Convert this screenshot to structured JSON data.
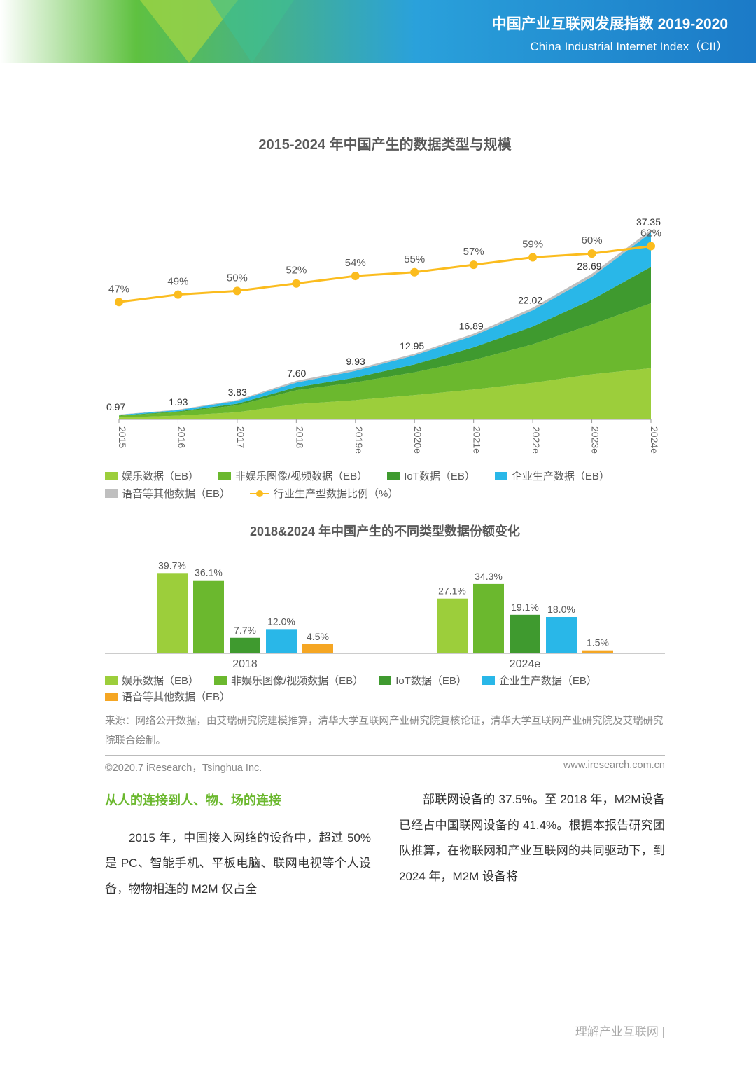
{
  "header": {
    "title_cn": "中国产业互联网发展指数 2019-2020",
    "title_en": "China Industrial Internet Index（CII）",
    "bg_gradient": [
      "#ffffff",
      "#5fc140",
      "#2aa1db",
      "#1b7ac7"
    ]
  },
  "chart1": {
    "title": "2015-2024 年中国产生的数据类型与规模",
    "type": "stacked-area-with-line",
    "categories": [
      "2015",
      "2016",
      "2017",
      "2018",
      "2019e",
      "2020e",
      "2021e",
      "2022e",
      "2023e",
      "2024e"
    ],
    "totals": [
      0.97,
      1.93,
      3.83,
      7.6,
      9.93,
      12.95,
      16.89,
      22.02,
      28.69,
      37.35
    ],
    "series": [
      {
        "name": "娱乐数据（EB）",
        "key": "entertainment",
        "color": "#9cce3b",
        "values": [
          0.38,
          0.74,
          1.42,
          3.02,
          3.8,
          4.8,
          5.9,
          7.2,
          8.9,
          10.1
        ]
      },
      {
        "name": "非娱乐图像/视频数据（EB）",
        "key": "non_ent_imgvid",
        "color": "#6bb82e",
        "values": [
          0.35,
          0.7,
          1.38,
          2.74,
          3.5,
          4.5,
          5.8,
          7.6,
          9.8,
          12.8
        ]
      },
      {
        "name": "IoT数据（EB）",
        "key": "iot",
        "color": "#3f9a2f",
        "values": [
          0.07,
          0.15,
          0.3,
          0.59,
          0.95,
          1.55,
          2.5,
          3.5,
          4.9,
          7.15
        ]
      },
      {
        "name": "企业生产数据（EB）",
        "key": "enterprise",
        "color": "#29b7e8",
        "values": [
          0.12,
          0.24,
          0.55,
          0.91,
          1.32,
          1.78,
          2.3,
          3.22,
          4.49,
          6.72
        ]
      },
      {
        "name": "语音等其他数据（EB）",
        "key": "voice_other",
        "color": "#bfbfbf",
        "values": [
          0.05,
          0.1,
          0.18,
          0.34,
          0.36,
          0.32,
          0.39,
          0.5,
          0.6,
          0.58
        ]
      }
    ],
    "line": {
      "name": "行业生产型数据比例（%）",
      "color": "#fbbc1e",
      "values": [
        47,
        49,
        50,
        52,
        54,
        55,
        57,
        59,
        60,
        62
      ],
      "marker_size": 6
    },
    "ylim_bar": [
      0,
      40
    ],
    "ylim_line": [
      40,
      70
    ],
    "axis_color": "#999",
    "label_fontsize": 14,
    "title_fontsize": 20,
    "background": "#ffffff",
    "total_label_color": "#333"
  },
  "chart2": {
    "title": "2018&2024 年中国产生的不同类型数据份额变化",
    "type": "grouped-bar",
    "groups": [
      "2018",
      "2024e"
    ],
    "categories": [
      "娱乐数据（EB）",
      "非娱乐图像/视频数据（EB）",
      "IoT数据（EB）",
      "企业生产数据（EB）",
      "语音等其他数据（EB）"
    ],
    "colors": [
      "#9cce3b",
      "#6bb82e",
      "#3f9a2f",
      "#29b7e8",
      "#f5a623"
    ],
    "values": {
      "2018": [
        39.7,
        36.1,
        7.7,
        12.0,
        4.5
      ],
      "2024e": [
        27.1,
        34.3,
        19.1,
        18.0,
        1.5
      ]
    },
    "ylim": [
      0,
      45
    ],
    "value_suffix": "%",
    "label_fontsize": 14,
    "title_fontsize": 18,
    "axis_color": "#999"
  },
  "source": "来源：网络公开数据，由艾瑞研究院建模推算，清华大学互联网产业研究院复核论证，清华大学互联网产业研究院及艾瑞研究院联合绘制。",
  "copyright_left": "©2020.7 iResearch，Tsinghua Inc.",
  "copyright_right": "www.iresearch.com.cn",
  "section_heading": "从人的连接到人、物、场的连接",
  "col_left": "2015 年，中国接入网络的设备中，超过 50%是 PC、智能手机、平板电脑、联网电视等个人设备，物物相连的 M2M 仅占全",
  "col_right": "部联网设备的 37.5%。至 2018 年，M2M设备已经占中国联网设备的 41.4%。根据本报告研究团队推算，在物联网和产业互联网的共同驱动下，到 2024 年，M2M 设备将",
  "footer": "理解产业互联网  |"
}
